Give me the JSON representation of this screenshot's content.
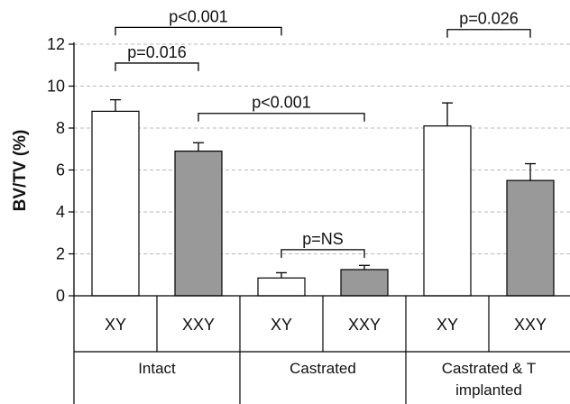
{
  "chart_data": {
    "type": "bar",
    "title": "",
    "ylabel": "BV/TV (%)",
    "xlabel": "",
    "ylim": [
      0,
      12
    ],
    "yticks": [
      0,
      2,
      4,
      6,
      8,
      10,
      12
    ],
    "grid": "horizontal dashed",
    "groups": [
      {
        "label_lines": [
          "Intact"
        ]
      },
      {
        "label_lines": [
          "Castrated"
        ]
      },
      {
        "label_lines": [
          "Castrated & T",
          "implanted"
        ]
      }
    ],
    "categories": [
      "XY",
      "XXY",
      "XY",
      "XXY",
      "XY",
      "XXY"
    ],
    "bar_group": [
      0,
      0,
      1,
      1,
      2,
      2
    ],
    "values": [
      8.8,
      6.9,
      0.85,
      1.25,
      8.1,
      5.5
    ],
    "errors": [
      0.55,
      0.4,
      0.25,
      0.2,
      1.1,
      0.8
    ],
    "bar_fill": [
      "#ffffff",
      "#999999",
      "#ffffff",
      "#999999",
      "#ffffff",
      "#999999"
    ],
    "annotations": [
      {
        "text": "p<0.001",
        "from_bar": 0,
        "to_bar": 2,
        "y": 12.8
      },
      {
        "text": "p=0.016",
        "from_bar": 0,
        "to_bar": 1,
        "y": 11.1
      },
      {
        "text": "p<0.001",
        "from_bar": 1,
        "to_bar": 3,
        "y": 8.7
      },
      {
        "text": "p=NS",
        "from_bar": 2,
        "to_bar": 3,
        "y": 2.2
      },
      {
        "text": "p=0.026",
        "from_bar": 4,
        "to_bar": 5,
        "y": 12.7
      }
    ]
  }
}
